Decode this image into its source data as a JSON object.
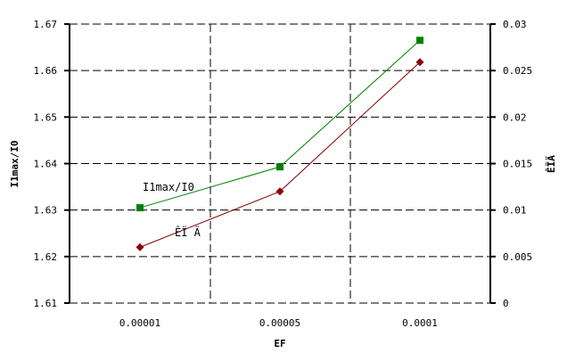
{
  "chart_data": {
    "type": "line",
    "xlabel": "EF",
    "ylabel_left": "I1max/I0",
    "ylabel_right": "ÊÏÄ",
    "categories": [
      "0.00001",
      "0.00005",
      "0.0001"
    ],
    "y_left": {
      "range": [
        1.61,
        1.67
      ],
      "ticks": [
        "1.61",
        "1.62",
        "1.63",
        "1.64",
        "1.65",
        "1.66",
        "1.67"
      ]
    },
    "y_right": {
      "range": [
        0,
        0.03
      ],
      "ticks": [
        "0",
        "0.005",
        "0.01",
        "0.015",
        "0.02",
        "0.025",
        "0.03"
      ]
    },
    "grid": true,
    "series": [
      {
        "name": "I1max/I0",
        "axis": "left",
        "color": "#008000",
        "marker": "square",
        "values": [
          1.6305,
          1.6393,
          1.6665
        ]
      },
      {
        "name": "ÊÏ Ä",
        "axis": "right",
        "color": "#8b0000",
        "marker": "diamond",
        "values": [
          0.006,
          0.012,
          0.0259
        ]
      }
    ]
  }
}
